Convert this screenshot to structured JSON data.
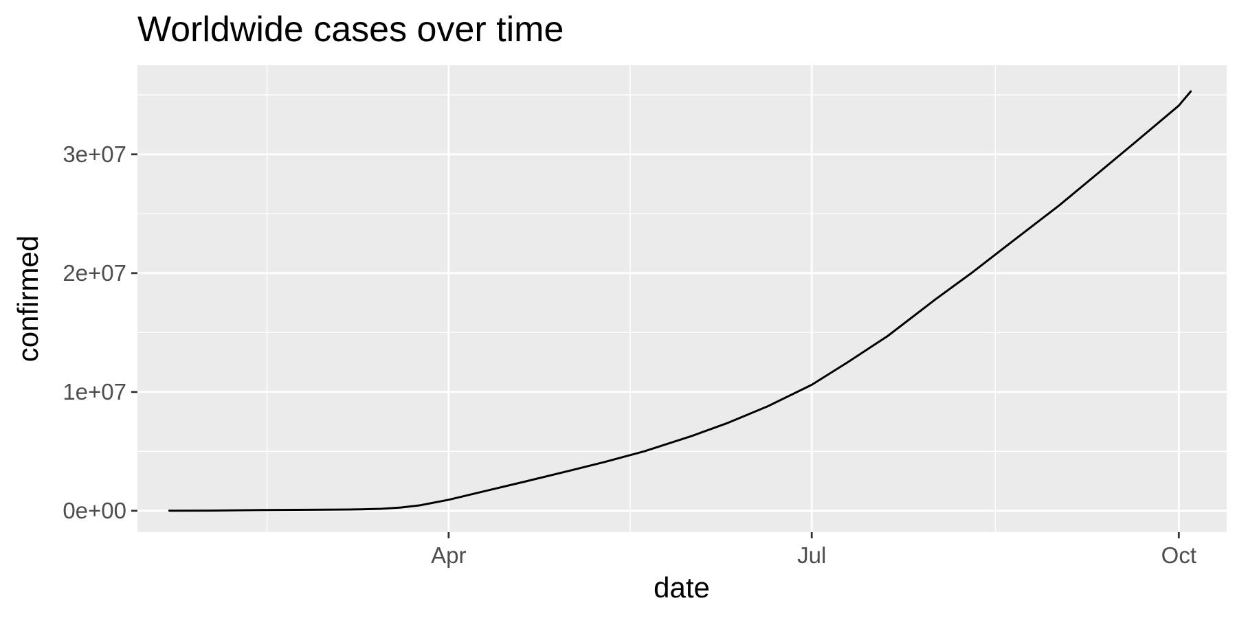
{
  "chart_data": {
    "type": "line",
    "title": "Worldwide cases over time",
    "xlabel": "date",
    "ylabel": "confirmed",
    "x_type": "date",
    "xlim": [
      "2020-01-14",
      "2020-10-13"
    ],
    "ylim": [
      -1800000,
      37500000
    ],
    "x_ticks": [
      {
        "date": "2020-04-01",
        "label": "Apr"
      },
      {
        "date": "2020-07-01",
        "label": "Jul"
      },
      {
        "date": "2020-10-01",
        "label": "Oct"
      }
    ],
    "y_ticks": [
      {
        "value": 0,
        "label": "0e+00"
      },
      {
        "value": 10000000,
        "label": "1e+07"
      },
      {
        "value": 20000000,
        "label": "2e+07"
      },
      {
        "value": 30000000,
        "label": "3e+07"
      }
    ],
    "grid": true,
    "background": "#ebebeb",
    "line_color": "#000000",
    "series": [
      {
        "points": [
          [
            "2020-01-22",
            555
          ],
          [
            "2020-02-01",
            12000
          ],
          [
            "2020-02-15",
            69000
          ],
          [
            "2020-03-01",
            88000
          ],
          [
            "2020-03-10",
            119000
          ],
          [
            "2020-03-15",
            167000
          ],
          [
            "2020-03-20",
            275000
          ],
          [
            "2020-03-25",
            470000
          ],
          [
            "2020-04-01",
            930000
          ],
          [
            "2020-04-10",
            1650000
          ],
          [
            "2020-04-20",
            2450000
          ],
          [
            "2020-05-01",
            3350000
          ],
          [
            "2020-05-10",
            4100000
          ],
          [
            "2020-05-20",
            5000000
          ],
          [
            "2020-06-01",
            6300000
          ],
          [
            "2020-06-10",
            7400000
          ],
          [
            "2020-06-20",
            8800000
          ],
          [
            "2020-07-01",
            10600000
          ],
          [
            "2020-07-10",
            12500000
          ],
          [
            "2020-07-20",
            14700000
          ],
          [
            "2020-08-01",
            17800000
          ],
          [
            "2020-08-10",
            20000000
          ],
          [
            "2020-08-20",
            22600000
          ],
          [
            "2020-09-01",
            25700000
          ],
          [
            "2020-09-10",
            28200000
          ],
          [
            "2020-09-20",
            31000000
          ],
          [
            "2020-10-01",
            34100000
          ],
          [
            "2020-10-04",
            35300000
          ]
        ]
      }
    ]
  }
}
